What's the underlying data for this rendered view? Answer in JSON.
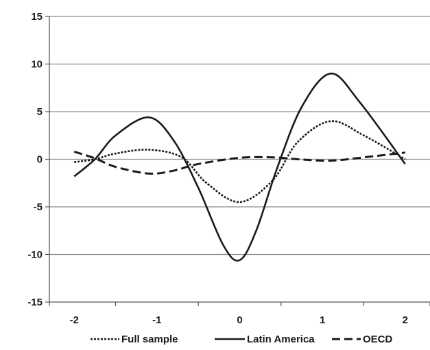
{
  "chart_data": {
    "type": "line",
    "title": "",
    "xlabel": "",
    "ylabel": "",
    "xlim": [
      -2.3,
      2.3
    ],
    "ylim": [
      -15,
      15
    ],
    "x_ticks": [
      -2,
      -1,
      0,
      1,
      2
    ],
    "x_tick_labels": [
      "-2",
      "-1",
      "0",
      "1",
      "2"
    ],
    "y_ticks": [
      15,
      10,
      5,
      0,
      -5,
      -10,
      -15
    ],
    "y_tick_labels": [
      "15",
      "10",
      "5",
      "0",
      "-5",
      "-10",
      "-15"
    ],
    "grid": "horizontal",
    "legend_position": "bottom",
    "series": [
      {
        "name": "Full sample",
        "line_style": "dotted",
        "x": [
          -2,
          -1.75,
          -1.5,
          -1.1,
          -0.7,
          -0.4,
          0,
          0.4,
          0.7,
          1.1,
          1.5,
          2
        ],
        "values": [
          -0.3,
          0.0,
          0.6,
          1.0,
          0.2,
          -2.5,
          -4.5,
          -2.2,
          1.8,
          4.0,
          2.5,
          0.0
        ]
      },
      {
        "name": "Latin America",
        "line_style": "solid",
        "x": [
          -2,
          -1.75,
          -1.5,
          -1.1,
          -0.8,
          -0.5,
          -0.2,
          0,
          0.2,
          0.45,
          0.75,
          1.1,
          1.45,
          2
        ],
        "values": [
          -1.8,
          0.0,
          2.5,
          4.4,
          2.0,
          -3.0,
          -9.0,
          -10.6,
          -7.5,
          -1.0,
          5.5,
          9.0,
          6.0,
          -0.5
        ]
      },
      {
        "name": "OECD",
        "line_style": "dashed",
        "x": [
          -2,
          -1.75,
          -1.5,
          -1.1,
          -0.8,
          -0.5,
          0,
          0.4,
          0.7,
          1.1,
          1.5,
          2
        ],
        "values": [
          0.8,
          0.1,
          -0.8,
          -1.5,
          -1.2,
          -0.5,
          0.15,
          0.2,
          0.0,
          -0.15,
          0.2,
          0.7
        ]
      }
    ]
  }
}
